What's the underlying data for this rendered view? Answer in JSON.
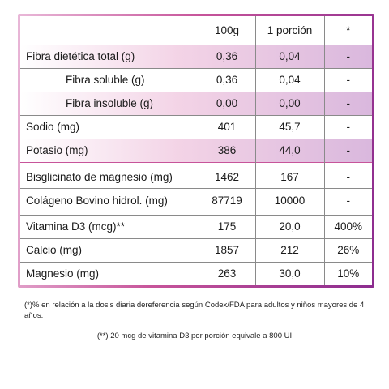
{
  "table": {
    "headers": [
      "",
      "100g",
      "1 porción",
      "*"
    ],
    "rows": [
      {
        "label": "Fibra dietética total (g)",
        "per100": "0,36",
        "portion": "0,04",
        "pct": "-",
        "shade": true,
        "indent": false
      },
      {
        "label": "Fibra soluble (g)",
        "per100": "0,36",
        "portion": "0,04",
        "pct": "-",
        "shade": false,
        "indent": true
      },
      {
        "label": "Fibra insoluble (g)",
        "per100": "0,00",
        "portion": "0,00",
        "pct": "-",
        "shade": true,
        "indent": true
      },
      {
        "label": "Sodio (mg)",
        "per100": "401",
        "portion": "45,7",
        "pct": "-",
        "shade": false,
        "indent": false
      },
      {
        "label": "Potasio (mg)",
        "per100": "386",
        "portion": "44,0",
        "pct": "-",
        "shade": true,
        "indent": false
      },
      {
        "label": "Bisglicinato de magnesio (mg)",
        "per100": "1462",
        "portion": "167",
        "pct": "-",
        "shade": false,
        "indent": false
      },
      {
        "label": "Colágeno Bovino hidrol. (mg)",
        "per100": "87719",
        "portion": "10000",
        "pct": "-",
        "shade": false,
        "indent": false
      },
      {
        "label": "Vitamina D3 (mcg)**",
        "per100": "175",
        "portion": "20,0",
        "pct": "400%",
        "shade": false,
        "indent": false
      },
      {
        "label": "Calcio (mg)",
        "per100": "1857",
        "portion": "212",
        "pct": "26%",
        "shade": false,
        "indent": false
      },
      {
        "label": "Magnesio (mg)",
        "per100": "263",
        "portion": "30,0",
        "pct": "10%",
        "shade": false,
        "indent": false
      }
    ]
  },
  "notes": {
    "note1": "(*)% en relación a la dosis diaria dereferencia según Codex/FDA para adultos y niños mayores de 4 años.",
    "note2": "(**) 20 mcg de vitamina D3 por porción equivale a 800 UI"
  }
}
